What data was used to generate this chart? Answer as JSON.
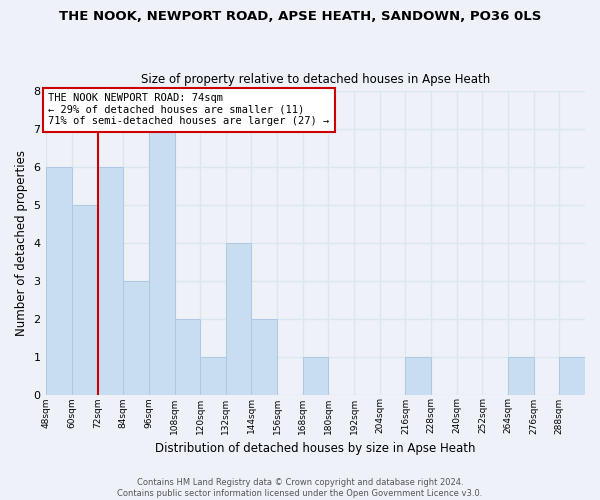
{
  "title": "THE NOOK, NEWPORT ROAD, APSE HEATH, SANDOWN, PO36 0LS",
  "subtitle": "Size of property relative to detached houses in Apse Heath",
  "xlabel": "Distribution of detached houses by size in Apse Heath",
  "ylabel": "Number of detached properties",
  "bar_color": "#c9ddf0",
  "bar_edge_color": "#aec8e4",
  "bins": [
    48,
    60,
    72,
    84,
    96,
    108,
    120,
    132,
    144,
    156,
    168,
    180,
    192,
    204,
    216,
    228,
    240,
    252,
    264,
    276,
    288,
    300
  ],
  "counts": [
    6,
    5,
    6,
    3,
    7,
    2,
    1,
    4,
    2,
    0,
    1,
    0,
    0,
    0,
    1,
    0,
    0,
    0,
    1,
    0,
    1
  ],
  "ref_line_x": 72,
  "ref_line_color": "#cc0000",
  "ylim": [
    0,
    8
  ],
  "yticks": [
    0,
    1,
    2,
    3,
    4,
    5,
    6,
    7,
    8
  ],
  "annotation_text": "THE NOOK NEWPORT ROAD: 74sqm\n← 29% of detached houses are smaller (11)\n71% of semi-detached houses are larger (27) →",
  "annotation_box_color": "#ffffff",
  "annotation_box_edge": "#cc0000",
  "footer_line1": "Contains HM Land Registry data © Crown copyright and database right 2024.",
  "footer_line2": "Contains public sector information licensed under the Open Government Licence v3.0.",
  "background_color": "#eef2f8",
  "grid_color": "#dce6f0",
  "tick_labels": [
    "48sqm",
    "60sqm",
    "72sqm",
    "84sqm",
    "96sqm",
    "108sqm",
    "120sqm",
    "132sqm",
    "144sqm",
    "156sqm",
    "168sqm",
    "180sqm",
    "192sqm",
    "204sqm",
    "216sqm",
    "228sqm",
    "240sqm",
    "252sqm",
    "264sqm",
    "276sqm",
    "288sqm"
  ]
}
